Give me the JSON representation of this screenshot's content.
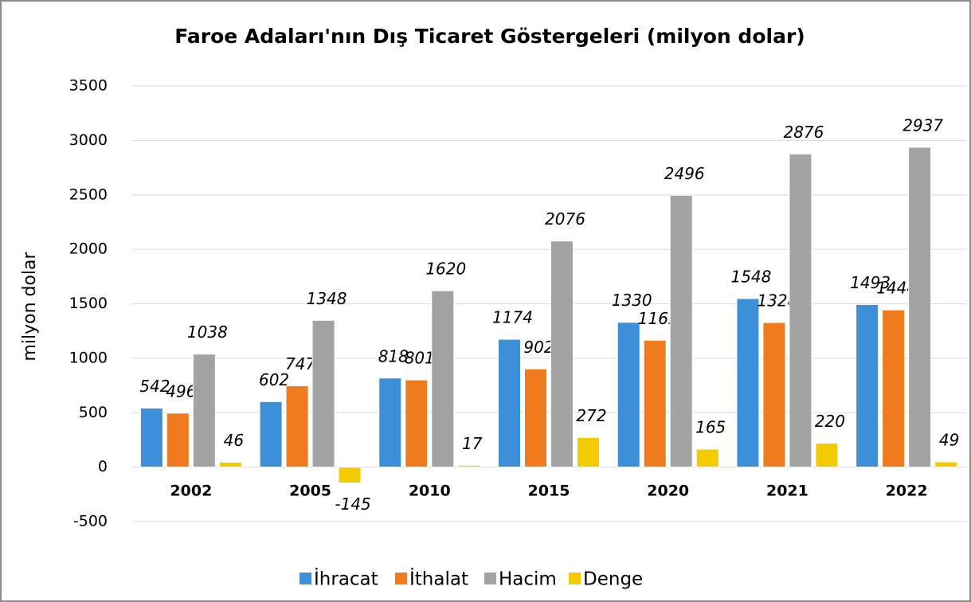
{
  "chart_data": {
    "type": "bar",
    "title": "Faroe Adaları'nın Dış Ticaret Göstergeleri  (milyon dolar)",
    "y_label": "milyon dolar",
    "categories": [
      "2002",
      "2005",
      "2010",
      "2015",
      "2020",
      "2021",
      "2022"
    ],
    "series": [
      {
        "name": "İhracat",
        "color": "#3d8fd8",
        "values": [
          542,
          602,
          818,
          1174,
          1330,
          1548,
          1493
        ]
      },
      {
        "name": "İthalat",
        "color": "#f07a1e",
        "values": [
          496,
          747,
          801,
          902,
          1165,
          1328,
          1444
        ]
      },
      {
        "name": "Hacim",
        "color": "#a3a3a3",
        "values": [
          1038,
          1348,
          1620,
          2076,
          2496,
          2876,
          2937
        ]
      },
      {
        "name": "Denge",
        "color": "#f2cc00",
        "values": [
          46,
          -145,
          17,
          272,
          165,
          220,
          49
        ]
      }
    ],
    "ylim": [
      -500,
      3500
    ],
    "yticks": [
      -500,
      0,
      500,
      1000,
      1500,
      2000,
      2500,
      3000,
      3500
    ],
    "grid": true,
    "legend": "bottom"
  }
}
